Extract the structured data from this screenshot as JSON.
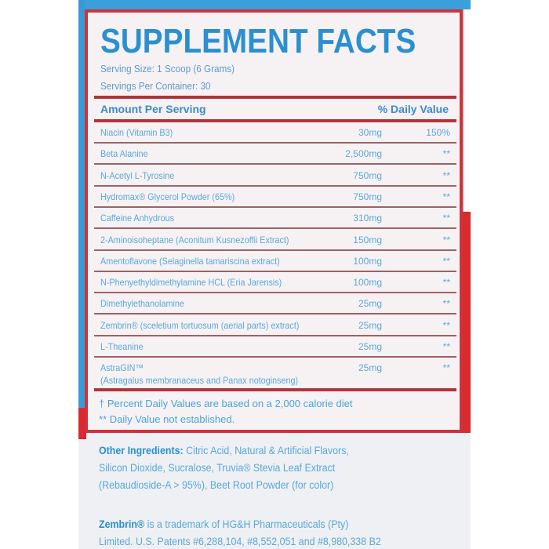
{
  "title": "SUPPLEMENT FACTS",
  "serving_size": "Serving Size: 1 Scoop (6 Grams)",
  "servings_per_container": "Servings Per Container: 30",
  "header": {
    "amount": "Amount Per Serving",
    "dv": "% Daily Value"
  },
  "rows": [
    {
      "name": "Niacin (Vitamin B3)",
      "amount": "30mg",
      "dv": "150%"
    },
    {
      "name": "Beta Alanine",
      "amount": "2,500mg",
      "dv": "**"
    },
    {
      "name": "N-Acetyl L-Tyrosine",
      "amount": "750mg",
      "dv": "**"
    },
    {
      "name": "Hydromax® Glycerol Powder (65%)",
      "amount": "750mg",
      "dv": "**"
    },
    {
      "name": "Caffeine Anhydrous",
      "amount": "310mg",
      "dv": "**"
    },
    {
      "name": "2-Aminoisoheptane (Aconitum Kusnezoffii Extract)",
      "amount": "150mg",
      "dv": "**"
    },
    {
      "name": "Amentoflavone (Selaginella tamariscina extract)",
      "amount": "100mg",
      "dv": "**"
    },
    {
      "name": "N-Phenyethyldimethylamine HCL (Eria Jarensis)",
      "amount": "100mg",
      "dv": "**"
    },
    {
      "name": "Dimethylethanolamine",
      "amount": "25mg",
      "dv": "**"
    },
    {
      "name": "Zembrin® (sceletium tortuosum (aerial parts) extract)",
      "amount": "25mg",
      "dv": "**"
    },
    {
      "name": "L-Theanine",
      "amount": "25mg",
      "dv": "**"
    },
    {
      "name": "AstraGIN™",
      "name2": "(Astragalus membranaceus and Panax notoginseng)",
      "amount": "25mg",
      "dv": "**"
    }
  ],
  "footnotes": [
    "† Percent Daily Values are based on a 2,000 calorie diet",
    "** Daily Value not established."
  ],
  "other_ingredients": {
    "label": "Other Ingredients:",
    "lines": [
      " Citric Acid, Natural & Artificial Flavors,",
      "Silicon Dioxide, Sucralose, Truvia® Stevia Leaf Extract",
      "(Rebaudioside-A > 95%), Beet Root Powder (for color)"
    ]
  },
  "trademark": {
    "label": "Zembrin®",
    "lines": [
      " is a trademark of HG&H Pharmaceuticals (Pty)",
      "Limited. U.S. Patents #6,288,104, #8,552,051 and #8,980,338 B2"
    ]
  }
}
